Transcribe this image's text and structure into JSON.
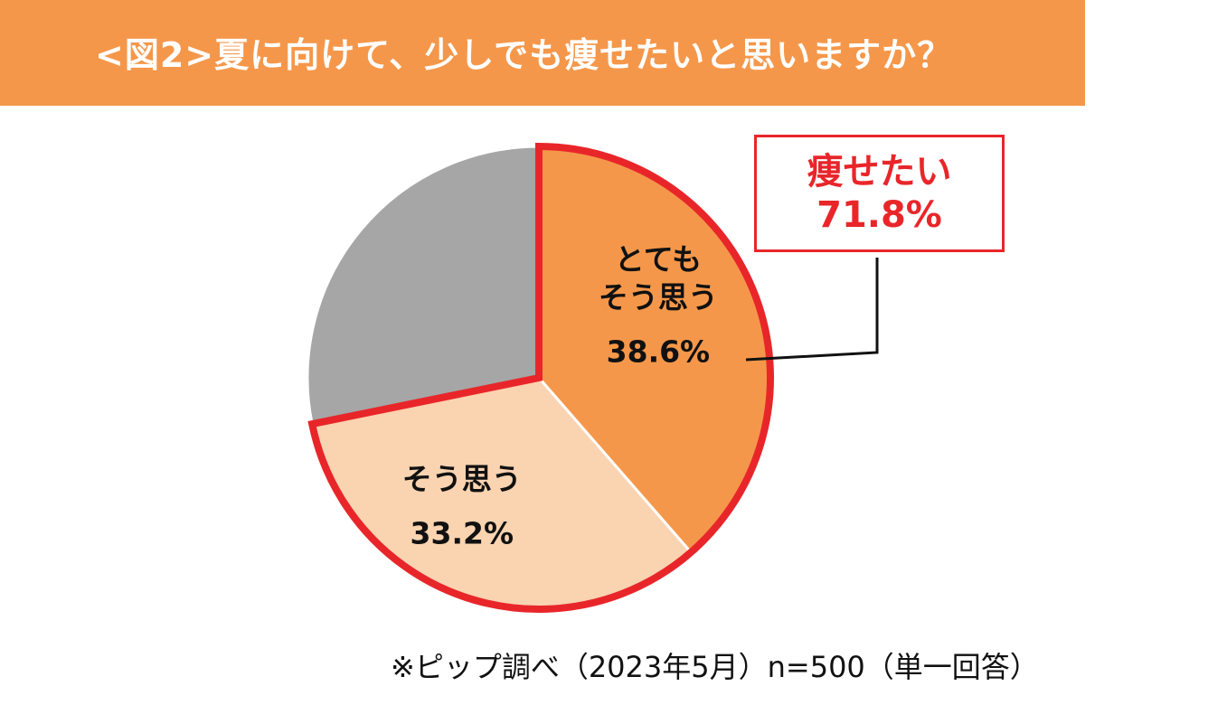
{
  "title": "<図2>夏に向けて、少しでも痩せたいと思いますか？",
  "callout": {
    "label": "痩せたい",
    "value": "71.8%"
  },
  "footnote": "※ピップ調べ（2023年5月）n=500（単一回答）",
  "colors": {
    "title_bg": "#F5974A",
    "highlight": "#E8262A",
    "slice_very": "#F5974A",
    "slice_agree": "#FAD3B1",
    "slice_other": "#A6A6A6"
  },
  "chart_data": {
    "type": "pie",
    "start": "12 o'clock, clockwise",
    "slices": [
      {
        "label_lines": [
          "とても",
          "そう思う"
        ],
        "value": 38.6,
        "value_label": "38.6%",
        "color": "#F5974A",
        "highlighted": true
      },
      {
        "label_lines": [
          "そう思う"
        ],
        "value": 33.2,
        "value_label": "33.2%",
        "color": "#FAD3B1",
        "highlighted": true
      },
      {
        "label_lines": [],
        "value": 28.2,
        "value_label": "",
        "color": "#A6A6A6",
        "highlighted": false
      }
    ],
    "highlight_total": "71.8%"
  }
}
